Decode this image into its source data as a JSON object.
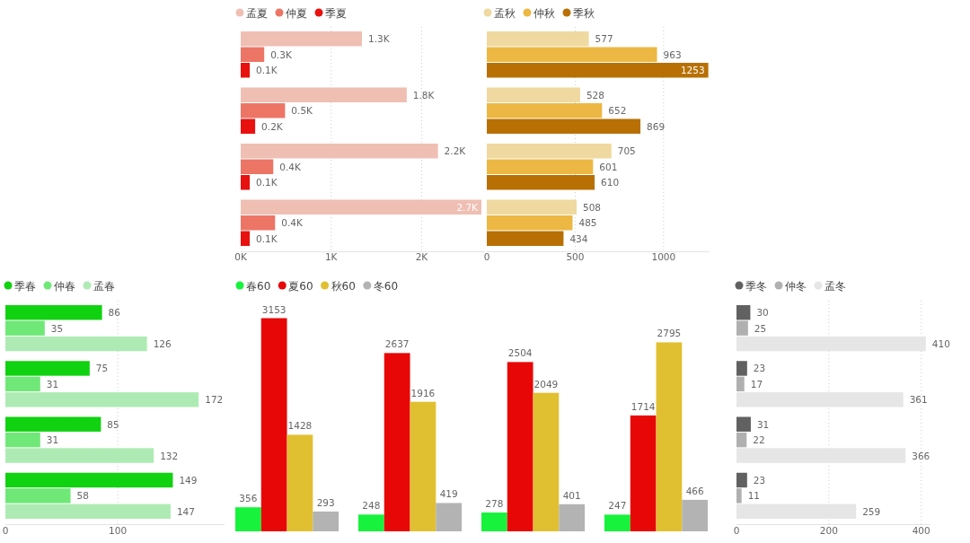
{
  "chart_data": [
    {
      "type": "bar",
      "orientation": "horizontal",
      "categories": [
        null,
        null,
        null,
        null
      ],
      "legend": "top left",
      "grid": "x",
      "xlim": [
        0,
        2700
      ],
      "xticks": [
        {
          "value": 0,
          "label": "0K"
        },
        {
          "value": 1000,
          "label": "1K"
        },
        {
          "value": 2000,
          "label": "2K"
        }
      ],
      "series": [
        {
          "name": "孟夏",
          "color": "#efbfb4",
          "values": [
            1340,
            1835,
            2180,
            2660
          ],
          "value_labels": [
            "1.3K",
            "1.8K",
            "2.2K",
            "2.7K"
          ]
        },
        {
          "name": "仲夏",
          "color": "#ec7566",
          "values": [
            260,
            490,
            360,
            380
          ],
          "value_labels": [
            "0.3K",
            "0.5K",
            "0.4K",
            "0.4K"
          ]
        },
        {
          "name": "季夏",
          "color": "#e8110f",
          "values": [
            100,
            160,
            100,
            100
          ],
          "value_labels": [
            "0.1K",
            "0.2K",
            "0.1K",
            "0.1K"
          ]
        }
      ]
    },
    {
      "type": "bar",
      "orientation": "horizontal",
      "categories": [
        null,
        null,
        null,
        null
      ],
      "legend": "top left",
      "grid": "x",
      "data_labels": true,
      "xlim": [
        0,
        1260
      ],
      "xticks": [
        0,
        500,
        1000
      ],
      "series": [
        {
          "name": "孟秋",
          "color": "#efd9a0",
          "values": [
            577,
            528,
            705,
            508
          ]
        },
        {
          "name": "仲秋",
          "color": "#ecb843",
          "values": [
            963,
            652,
            601,
            485
          ]
        },
        {
          "name": "季秋",
          "color": "#b87005",
          "values": [
            1253,
            869,
            610,
            434
          ]
        }
      ]
    },
    {
      "type": "bar",
      "orientation": "horizontal",
      "categories": [
        null,
        null,
        null,
        null
      ],
      "legend": "top left",
      "grid": "x",
      "data_labels": true,
      "xlim": [
        0,
        195
      ],
      "xticks": [
        0,
        100
      ],
      "series": [
        {
          "name": "季春",
          "color": "#11d211",
          "values": [
            86,
            75,
            85,
            149
          ]
        },
        {
          "name": "仲春",
          "color": "#6fe878",
          "values": [
            35,
            31,
            31,
            58
          ]
        },
        {
          "name": "孟春",
          "color": "#aeebb4",
          "values": [
            126,
            172,
            132,
            147
          ]
        }
      ]
    },
    {
      "type": "bar",
      "categories": [
        null,
        null,
        null,
        null
      ],
      "legend": "top left",
      "data_labels": true,
      "series": [
        {
          "name": "春60",
          "color": "#17f23c",
          "values": [
            356,
            248,
            278,
            247
          ]
        },
        {
          "name": "夏60",
          "color": "#e80707",
          "values": [
            3153,
            2637,
            2504,
            1714
          ]
        },
        {
          "name": "秋60",
          "color": "#e0c031",
          "values": [
            1428,
            1916,
            2049,
            2795
          ]
        },
        {
          "name": "冬60",
          "color": "#b3b3b3",
          "values": [
            293,
            419,
            401,
            466
          ]
        }
      ]
    },
    {
      "type": "bar",
      "orientation": "horizontal",
      "categories": [
        null,
        null,
        null,
        null
      ],
      "legend": "top left",
      "grid": "x",
      "data_labels": true,
      "xlim": [
        0,
        420
      ],
      "xticks": [
        0,
        200,
        400
      ],
      "series": [
        {
          "name": "季冬",
          "color": "#616161",
          "values": [
            30,
            23,
            31,
            23
          ]
        },
        {
          "name": "仲冬",
          "color": "#b0b0b0",
          "values": [
            25,
            17,
            22,
            11
          ]
        },
        {
          "name": "孟冬",
          "color": "#e6e6e6",
          "values": [
            410,
            361,
            366,
            259
          ]
        }
      ]
    }
  ]
}
